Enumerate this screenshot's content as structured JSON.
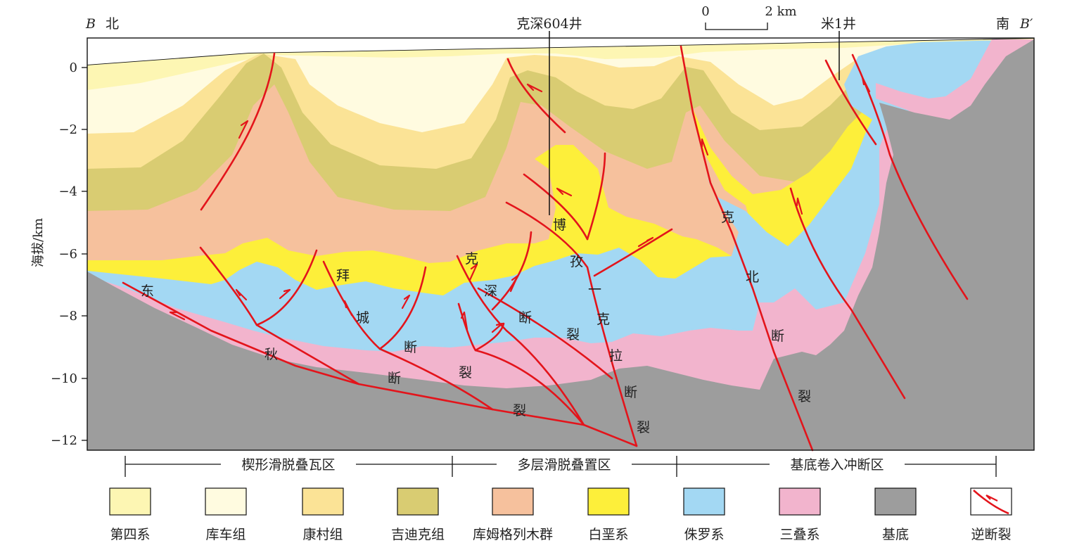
{
  "header": {
    "left_end": "B",
    "left_dir": "北",
    "right_dir": "南",
    "right_end": "B′",
    "well_1": "克深604井",
    "well_2": "米1井",
    "scale_zero": "0",
    "scale_end": "2 km"
  },
  "y_axis": {
    "label": "海拔/km",
    "ticks": [
      "0",
      "−2",
      "−4",
      "−6",
      "−8",
      "−10",
      "−12"
    ]
  },
  "fault_labels": {
    "dongqiu": [
      "东",
      "秋",
      "断",
      "裂"
    ],
    "baicheng": [
      "拜",
      "城",
      "断",
      "裂"
    ],
    "keshen": [
      "克",
      "深",
      "断",
      "裂"
    ],
    "bozi_kela": [
      "博",
      "孜",
      "一",
      "克",
      "拉",
      "断",
      "裂"
    ],
    "kebei": [
      "克",
      "北",
      "断",
      "裂"
    ]
  },
  "zones": [
    "楔形滑脱叠瓦区",
    "多层滑脱叠置区",
    "基底卷入冲断区"
  ],
  "legend": [
    {
      "label": "第四系",
      "color": "#fdf6b3"
    },
    {
      "label": "库车组",
      "color": "#fffbe0"
    },
    {
      "label": "康村组",
      "color": "#fbe396"
    },
    {
      "label": "吉迪克组",
      "color": "#d9cc72"
    },
    {
      "label": "库姆格列木群",
      "color": "#f6c19d"
    },
    {
      "label": "白垩系",
      "color": "#fdef3a"
    },
    {
      "label": "侏罗系",
      "color": "#a3d8f3"
    },
    {
      "label": "三叠系",
      "color": "#f2b4cd"
    },
    {
      "label": "基底",
      "color": "#9d9d9d"
    },
    {
      "label": "逆断裂",
      "color": "#e3141b"
    }
  ]
}
